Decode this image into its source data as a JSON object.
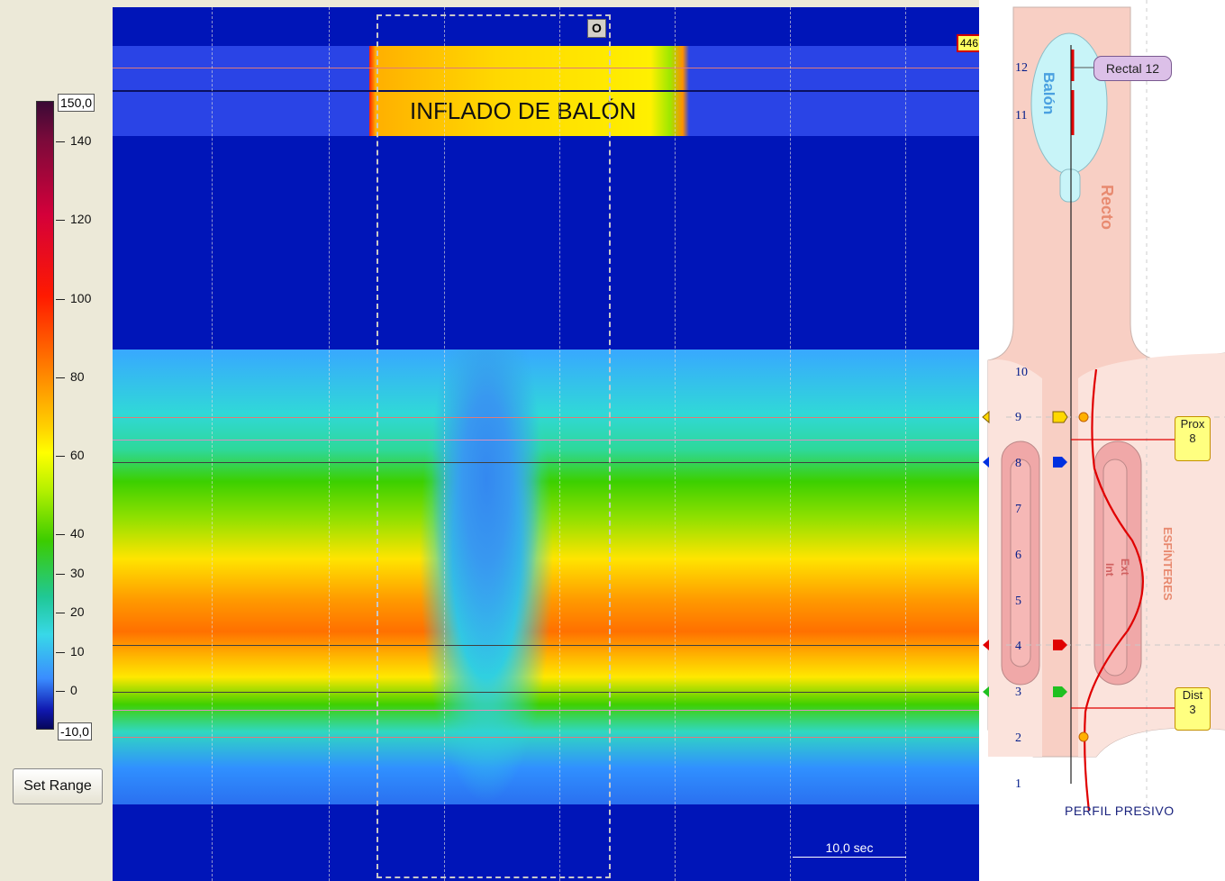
{
  "colorbar": {
    "max_label": "150,0",
    "min_label": "-10,0",
    "ticks": [
      "140",
      "120",
      "100",
      "80",
      "60",
      "40",
      "30",
      "20",
      "10",
      "0"
    ]
  },
  "set_range_label": "Set Range",
  "plot": {
    "balloon_label": "INFLADO DE BALÓN",
    "o_button": "O",
    "marker_value": "446",
    "scale_label": "10,0 sec"
  },
  "anatomy": {
    "channels": [
      "12",
      "11",
      "10",
      "9",
      "8",
      "7",
      "6",
      "5",
      "4",
      "3",
      "2",
      "1"
    ],
    "rectal_label": "Rectal 12",
    "balloon_word": "Balón",
    "recto_word": "Recto",
    "sphincters_word": "ESFÍNTERES",
    "int_word": "Int",
    "ext_word": "Ext",
    "prox_label": "Prox",
    "prox_channel": "8",
    "dist_label": "Dist",
    "dist_channel": "3",
    "profile_title": "PERFIL PRESIVO"
  },
  "colors": {
    "background": "#ece9d8",
    "plot_background": "#0015b8",
    "tissue": "#f8cfc4",
    "balloon": "#c8f4f8",
    "marker_yellow": "#ffff80",
    "profile_red": "#e00000"
  },
  "icons": [
    "proximal-marker-triangle",
    "distal-marker-triangle",
    "balloon-marker-icon"
  ]
}
